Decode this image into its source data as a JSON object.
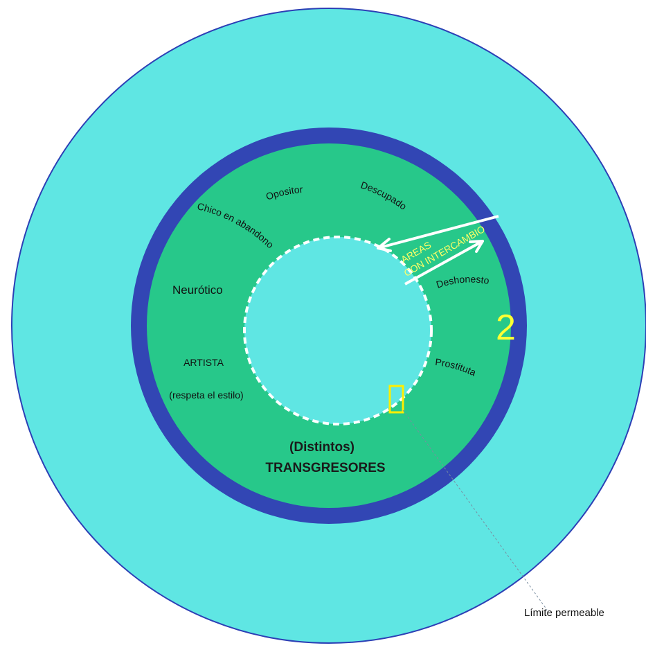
{
  "colors": {
    "outer_field": "#5fe6e3",
    "outer_stroke": "#2c3fb5",
    "band": "#3246b4",
    "ring_fill": "#27c88a",
    "inner_core": "#5fe6e3",
    "dashed_boundary": "#ffffff",
    "exchange": "#ffff66",
    "number": "#ffff33",
    "highlight_box": "#ffee00",
    "leader_line": "#7a8ea0"
  },
  "labels": {
    "opositor": "Opositor",
    "descupado": "Descupado",
    "chico": "Chico en abandono",
    "neurotico": "Neurótico",
    "deshonesto": "Deshonesto",
    "artista": "ARTISTA",
    "respeta": "(respeta el estilo)",
    "prostituta": "Prostituta",
    "distintos": "(Distintos)",
    "transgresores": "TRANSGRESORES",
    "areas": "AREAS",
    "intercambio": "CON INTERCAMBIO",
    "number": "2",
    "limite": "Límite permeable"
  }
}
